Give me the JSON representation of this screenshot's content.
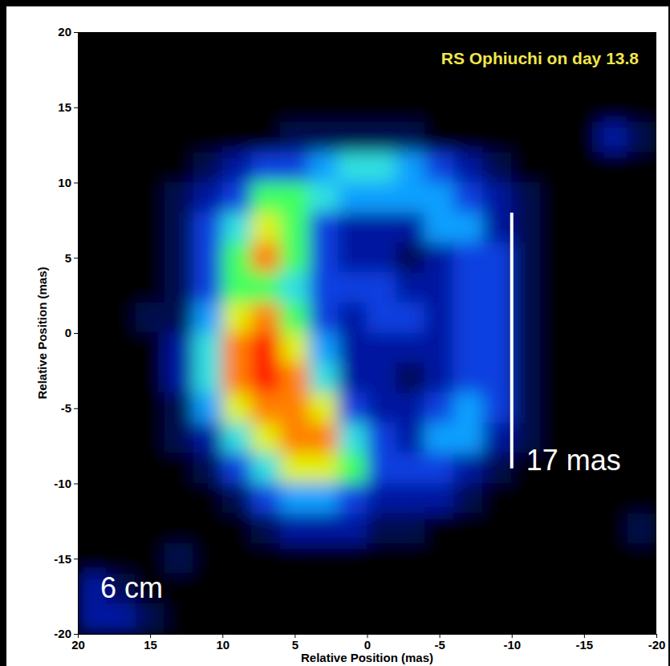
{
  "chart_data": {
    "type": "heatmap",
    "title": "RS Ophiuchi on day 13.8",
    "xlabel": "Relative Position (mas)",
    "ylabel": "Relative Position (mas)",
    "annotations": [
      "6 cm"
    ],
    "scale_bar": {
      "label": "17 mas",
      "length": 17
    },
    "x": [
      19,
      17,
      15,
      13,
      11,
      9,
      7,
      5,
      3,
      1,
      -1,
      -3,
      -5,
      -7,
      -9,
      -11,
      -13,
      -15,
      -17,
      -19
    ],
    "y": [
      19,
      17,
      15,
      13,
      11,
      9,
      7,
      5,
      3,
      1,
      -1,
      -3,
      -5,
      -7,
      -9,
      -11,
      -13,
      -15,
      -17,
      -19
    ],
    "z": [
      [
        0,
        0,
        0,
        0,
        0,
        0,
        0,
        0,
        0,
        0,
        0,
        0,
        0,
        0,
        0,
        0,
        0,
        0,
        0,
        0
      ],
      [
        0,
        0,
        0,
        0,
        0,
        0,
        0,
        0,
        0,
        0,
        0,
        0,
        0,
        0,
        0,
        0,
        0,
        0,
        0,
        0
      ],
      [
        0,
        0,
        0,
        0,
        0,
        0,
        0,
        0,
        0,
        0,
        0,
        0,
        0,
        0,
        0,
        0,
        0,
        0,
        0,
        0
      ],
      [
        0,
        0,
        0,
        0,
        0,
        0,
        0,
        1,
        1,
        1,
        1,
        1,
        0,
        0,
        0,
        0,
        0,
        0,
        2,
        1
      ],
      [
        0,
        0,
        0,
        0,
        1,
        2,
        3,
        3,
        4,
        5,
        5,
        4,
        3,
        2,
        1,
        0,
        0,
        0,
        0,
        0
      ],
      [
        0,
        0,
        0,
        1,
        2,
        3,
        6,
        6,
        5,
        4,
        4,
        4,
        4,
        3,
        2,
        1,
        0,
        0,
        0,
        0
      ],
      [
        0,
        0,
        0,
        1,
        3,
        5,
        7,
        6,
        3,
        2,
        2,
        2,
        4,
        4,
        2,
        1,
        0,
        0,
        0,
        0
      ],
      [
        0,
        0,
        0,
        1,
        3,
        6,
        8,
        6,
        3,
        2,
        2,
        1,
        2,
        3,
        3,
        1,
        0,
        0,
        0,
        0
      ],
      [
        0,
        0,
        0,
        1,
        3,
        6,
        6,
        5,
        3,
        3,
        3,
        2,
        2,
        3,
        3,
        1,
        0,
        0,
        0,
        0
      ],
      [
        0,
        0,
        1,
        1,
        4,
        7,
        8,
        6,
        3,
        2,
        3,
        3,
        2,
        3,
        3,
        1,
        0,
        0,
        0,
        0
      ],
      [
        0,
        0,
        0,
        2,
        5,
        8,
        9,
        7,
        4,
        2,
        2,
        2,
        2,
        3,
        3,
        1,
        0,
        0,
        0,
        0
      ],
      [
        0,
        0,
        0,
        2,
        5,
        8,
        9,
        8,
        5,
        2,
        2,
        1,
        2,
        3,
        3,
        1,
        0,
        0,
        0,
        0
      ],
      [
        0,
        0,
        0,
        1,
        4,
        7,
        8,
        8,
        7,
        3,
        2,
        2,
        3,
        4,
        3,
        1,
        0,
        0,
        0,
        0
      ],
      [
        0,
        0,
        0,
        1,
        2,
        5,
        7,
        8,
        8,
        5,
        3,
        2,
        4,
        4,
        2,
        1,
        0,
        0,
        0,
        0
      ],
      [
        0,
        0,
        0,
        0,
        1,
        3,
        5,
        7,
        7,
        6,
        3,
        3,
        3,
        2,
        1,
        0,
        0,
        0,
        0,
        0
      ],
      [
        0,
        0,
        0,
        0,
        0,
        1,
        3,
        4,
        4,
        3,
        2,
        2,
        2,
        1,
        0,
        0,
        0,
        0,
        0,
        0
      ],
      [
        0,
        0,
        0,
        0,
        0,
        0,
        1,
        2,
        2,
        2,
        1,
        1,
        0,
        0,
        0,
        0,
        0,
        0,
        0,
        1
      ],
      [
        0,
        0,
        0,
        1,
        0,
        0,
        0,
        0,
        0,
        0,
        0,
        0,
        0,
        0,
        0,
        0,
        0,
        0,
        0,
        0
      ],
      [
        2,
        1,
        0,
        0,
        0,
        0,
        0,
        0,
        0,
        0,
        0,
        0,
        0,
        0,
        0,
        0,
        0,
        0,
        0,
        0
      ],
      [
        2,
        2,
        1,
        0,
        0,
        0,
        0,
        0,
        0,
        0,
        0,
        0,
        0,
        0,
        0,
        0,
        0,
        0,
        0,
        0
      ]
    ],
    "xlim": [
      20,
      -20
    ],
    "ylim": [
      -20,
      20
    ],
    "xticks": [
      20,
      15,
      10,
      5,
      0,
      -5,
      -10,
      -15,
      -20
    ],
    "yticks": [
      -20,
      -15,
      -10,
      -5,
      0,
      5,
      10,
      15,
      20
    ]
  }
}
